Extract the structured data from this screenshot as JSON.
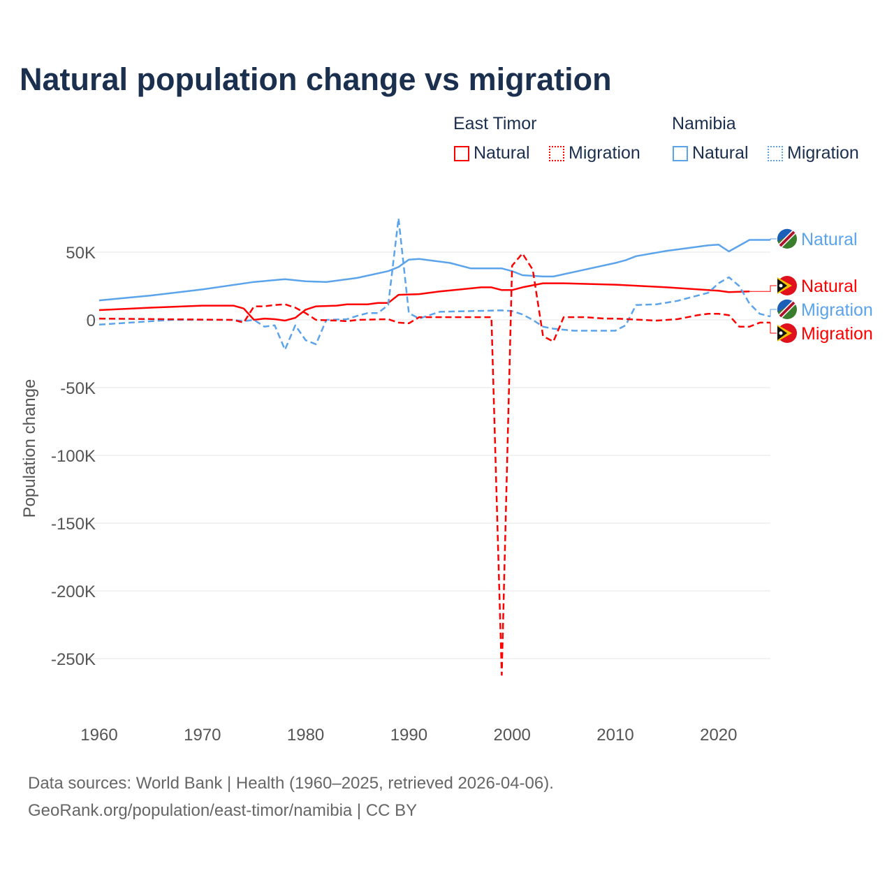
{
  "chart_data": {
    "type": "line",
    "title": "Natural population change vs migration",
    "ylabel": "Population change",
    "xlabel": "",
    "xlim": [
      1960,
      2025
    ],
    "ylim": [
      -270000,
      80000
    ],
    "xticks": [
      1960,
      1970,
      1980,
      1990,
      2000,
      2010,
      2020
    ],
    "xtick_labels": [
      "1960",
      "1970",
      "1980",
      "1990",
      "2000",
      "2010",
      "2020"
    ],
    "yticks": [
      50000,
      0,
      -50000,
      -100000,
      -150000,
      -200000,
      -250000
    ],
    "ytick_labels": [
      "50K",
      "0",
      "-50K",
      "-100K",
      "-150K",
      "-200K",
      "-250K"
    ],
    "grid": true,
    "legend": {
      "groups": [
        {
          "name": "East Timor",
          "items": [
            "Natural",
            "Migration"
          ]
        },
        {
          "name": "Namibia",
          "items": [
            "Natural",
            "Migration"
          ]
        }
      ],
      "placement": "top-right"
    },
    "series": [
      {
        "name": "Namibia Natural",
        "country": "Namibia",
        "kind": "Natural",
        "color": "#5ba3eb",
        "dash": false,
        "points": [
          [
            1960,
            14.4
          ],
          [
            1965,
            18
          ],
          [
            1970,
            22.5
          ],
          [
            1975,
            28
          ],
          [
            1978,
            30
          ],
          [
            1980,
            28.5
          ],
          [
            1982,
            28
          ],
          [
            1985,
            31
          ],
          [
            1988,
            36
          ],
          [
            1989,
            39
          ],
          [
            1990,
            44.5
          ],
          [
            1991,
            45
          ],
          [
            1994,
            42
          ],
          [
            1996,
            38
          ],
          [
            1999,
            38
          ],
          [
            2000,
            36
          ],
          [
            2001,
            33
          ],
          [
            2003,
            32
          ],
          [
            2004,
            32
          ],
          [
            2007,
            37
          ],
          [
            2010,
            42
          ],
          [
            2011,
            44
          ],
          [
            2012,
            47
          ],
          [
            2015,
            51
          ],
          [
            2017,
            53
          ],
          [
            2019,
            55
          ],
          [
            2020,
            55.5
          ],
          [
            2021,
            50.5
          ],
          [
            2023,
            59
          ],
          [
            2025,
            59
          ]
        ]
      },
      {
        "name": "East Timor Natural",
        "country": "East Timor",
        "kind": "Natural",
        "color": "#ff0000",
        "dash": false,
        "points": [
          [
            1960,
            7.2
          ],
          [
            1965,
            9
          ],
          [
            1970,
            10.5
          ],
          [
            1973,
            10.5
          ],
          [
            1974,
            8.4
          ],
          [
            1975,
            0
          ],
          [
            1976,
            1
          ],
          [
            1977,
            0.5
          ],
          [
            1978,
            -0.5
          ],
          [
            1979,
            1.5
          ],
          [
            1980,
            7.5
          ],
          [
            1981,
            10
          ],
          [
            1983,
            10.5
          ],
          [
            1984,
            11.5
          ],
          [
            1986,
            11.5
          ],
          [
            1987,
            12.5
          ],
          [
            1988,
            12.5
          ],
          [
            1989,
            18.5
          ],
          [
            1991,
            19
          ],
          [
            1993,
            21
          ],
          [
            1995,
            22.5
          ],
          [
            1997,
            24
          ],
          [
            1998,
            24
          ],
          [
            1999,
            22
          ],
          [
            2000,
            22
          ],
          [
            2001,
            24
          ],
          [
            2003,
            27
          ],
          [
            2005,
            27
          ],
          [
            2010,
            26
          ],
          [
            2015,
            24
          ],
          [
            2020,
            21.5
          ],
          [
            2021,
            20.5
          ],
          [
            2023,
            21
          ]
        ]
      },
      {
        "name": "Namibia Migration",
        "country": "Namibia",
        "kind": "Migration",
        "color": "#5ba3eb",
        "dash": true,
        "points": [
          [
            1960,
            -3.5
          ],
          [
            1967,
            0
          ],
          [
            1973,
            0
          ],
          [
            1974,
            -1
          ],
          [
            1975,
            0
          ],
          [
            1976,
            -5
          ],
          [
            1977,
            -4
          ],
          [
            1978,
            -22
          ],
          [
            1979,
            -4
          ],
          [
            1980,
            -15
          ],
          [
            1981,
            -18
          ],
          [
            1982,
            0
          ],
          [
            1984,
            0.5
          ],
          [
            1985,
            3
          ],
          [
            1986,
            5
          ],
          [
            1987,
            5
          ],
          [
            1988,
            11
          ],
          [
            1989,
            75
          ],
          [
            1990,
            5
          ],
          [
            1991,
            1
          ],
          [
            1993,
            6
          ],
          [
            1996,
            6.5
          ],
          [
            1999,
            7
          ],
          [
            2000,
            6.5
          ],
          [
            2001,
            4
          ],
          [
            2002,
            0
          ],
          [
            2003,
            -5
          ],
          [
            2004,
            -6.5
          ],
          [
            2006,
            -8
          ],
          [
            2010,
            -8
          ],
          [
            2011,
            -4
          ],
          [
            2012,
            11
          ],
          [
            2014,
            11.5
          ],
          [
            2016,
            14
          ],
          [
            2019,
            20
          ],
          [
            2020,
            27
          ],
          [
            2021,
            31.5
          ],
          [
            2022,
            25
          ],
          [
            2023,
            12
          ],
          [
            2024,
            4.5
          ],
          [
            2025,
            2.5
          ]
        ]
      },
      {
        "name": "East Timor Migration",
        "country": "East Timor",
        "kind": "Migration",
        "color": "#ff0000",
        "dash": true,
        "points": [
          [
            1960,
            1
          ],
          [
            1973,
            0
          ],
          [
            1974,
            -2
          ],
          [
            1975,
            10
          ],
          [
            1976,
            10
          ],
          [
            1977,
            11
          ],
          [
            1978,
            11.5
          ],
          [
            1979,
            9
          ],
          [
            1980,
            5
          ],
          [
            1981,
            0
          ],
          [
            1983,
            -0.5
          ],
          [
            1984,
            -1
          ],
          [
            1985,
            0
          ],
          [
            1988,
            0.5
          ],
          [
            1989,
            -2
          ],
          [
            1990,
            -2.5
          ],
          [
            1991,
            2
          ],
          [
            1998,
            2
          ],
          [
            1999,
            -262
          ],
          [
            2000,
            40
          ],
          [
            2001,
            49
          ],
          [
            2002,
            37
          ],
          [
            2003,
            -12
          ],
          [
            2004,
            -16
          ],
          [
            2005,
            2
          ],
          [
            2007,
            2
          ],
          [
            2009,
            1
          ],
          [
            2010,
            1
          ],
          [
            2014,
            -0.5
          ],
          [
            2016,
            0.5
          ],
          [
            2018,
            3.5
          ],
          [
            2019,
            4.5
          ],
          [
            2020,
            4.5
          ],
          [
            2021,
            3.5
          ],
          [
            2022,
            -5
          ],
          [
            2023,
            -5
          ],
          [
            2024,
            -2
          ],
          [
            2025,
            -2
          ]
        ]
      }
    ],
    "end_labels": [
      "Natural",
      "Natural",
      "Migration",
      "Migration"
    ]
  },
  "legend": {
    "group1": "East Timor",
    "group2": "Namibia",
    "natural": "Natural",
    "migration": "Migration"
  },
  "footer": {
    "line1": "Data sources: World Bank | Health (1960–2025, retrieved 2026-04-06).",
    "line2": "GeoRank.org/population/east-timor/namibia | CC BY"
  },
  "colors": {
    "east_timor": "#ff0000",
    "namibia": "#5ba3eb",
    "title": "#1b2f4e"
  }
}
